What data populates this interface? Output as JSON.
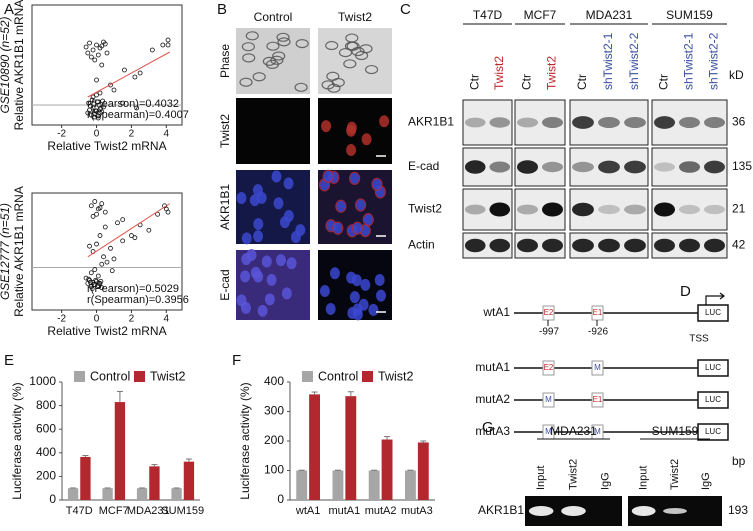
{
  "panel_labels": [
    "A",
    "B",
    "C",
    "D",
    "E",
    "F",
    "G"
  ],
  "chart_data": [
    {
      "type": "scatter",
      "dataset_label": "GSE10890 (n=52)",
      "y_label": "Relative AKR1B1 mRNA",
      "x_label": "Relative Twist2 mRNA",
      "x": [
        -0.6,
        -0.4,
        -0.2,
        0.0,
        0.2,
        0.4,
        -0.5,
        -0.3,
        0.1,
        0.3,
        0.5,
        -0.1,
        -0.5,
        -0.4,
        -0.3,
        -0.2,
        -0.1,
        0.0,
        0.1,
        0.2,
        0.3,
        0.4,
        -0.45,
        -0.35,
        -0.25,
        -0.15,
        -0.05,
        0.05,
        0.15,
        0.25,
        0.35,
        -0.2,
        0.0,
        0.2,
        0.3,
        0.6,
        0.8,
        1.0,
        1.5,
        1.6,
        2.2,
        2.3,
        2.5,
        3.2,
        3.8,
        4.1,
        4.1,
        -0.1,
        0.1,
        -0.3,
        0.2,
        0.0
      ],
      "y": [
        5.8,
        6.2,
        5.5,
        6.0,
        5.7,
        6.3,
        5.2,
        4.8,
        5.0,
        5.9,
        6.1,
        4.5,
        -0.8,
        -0.5,
        -1.0,
        -0.3,
        -0.9,
        -0.6,
        -1.1,
        -0.4,
        -0.7,
        -0.2,
        0.2,
        -0.1,
        0.5,
        0.1,
        -0.6,
        0.3,
        0.0,
        -0.3,
        0.4,
        0.8,
        1.0,
        1.2,
        4.0,
        5.2,
        2.0,
        1.5,
        0.2,
        3.5,
        2.8,
        -0.3,
        3.2,
        5.5,
        6.0,
        6.5,
        6.0,
        -1.2,
        -1.3,
        -1.0,
        -0.8,
        2.5
      ],
      "xlim": [
        -3.7,
        4.9
      ],
      "ylim": [
        -2,
        10
      ],
      "xticks": [
        -2,
        0,
        2,
        4
      ],
      "reference_line": 0,
      "fit": {
        "x": [
          -0.5,
          4.2
        ],
        "y": [
          0.8,
          5.3
        ]
      },
      "annotations": [
        "r(Pearson)=0.4032",
        "r(Spearman)=0.4007"
      ],
      "color": "#111111",
      "fit_color": "#e0564f"
    },
    {
      "type": "scatter",
      "dataset_label": "GSE12777 (n=51)",
      "y_label": "Relative AKR1B1 mRNA",
      "x_label": "Relative Twist2 mRNA",
      "x": [
        -0.3,
        -0.1,
        0.1,
        0.3,
        0.5,
        -0.2,
        0.0,
        0.2,
        -0.5,
        -0.4,
        -0.3,
        -0.2,
        -0.1,
        0.0,
        0.1,
        0.2,
        0.3,
        -0.45,
        -0.35,
        -0.25,
        -0.15,
        -0.05,
        0.05,
        0.15,
        0.25,
        -0.3,
        -0.1,
        0.1,
        0.3,
        -0.2,
        0.0,
        0.2,
        0.4,
        0.6,
        0.5,
        0.8,
        1.0,
        1.2,
        1.5,
        2.0,
        2.2,
        2.5,
        3.0,
        3.5,
        3.9,
        4.0,
        4.1,
        -0.6,
        1.5,
        0.9,
        -0.4
      ],
      "y": [
        5.8,
        6.2,
        5.5,
        6.0,
        5.2,
        4.8,
        5.0,
        5.6,
        -1.5,
        -1.2,
        -1.8,
        -1.4,
        -1.6,
        -1.3,
        -1.7,
        -1.5,
        -1.9,
        -1.1,
        -1.4,
        -2.0,
        -1.6,
        -1.2,
        -1.8,
        -1.5,
        -1.3,
        -0.5,
        -0.2,
        -0.8,
        0.3,
        1.5,
        2.2,
        3.0,
        1.0,
        0.5,
        3.8,
        1.8,
        0.8,
        4.2,
        4.5,
        3.0,
        2.8,
        4.0,
        3.5,
        5.0,
        5.8,
        5.5,
        5.2,
        -1.0,
        2.5,
        -0.3,
        2.0
      ],
      "xlim": [
        -3.7,
        4.9
      ],
      "ylim": [
        -4,
        7
      ],
      "xticks": [
        -2,
        0,
        2,
        4
      ],
      "reference_line": 0,
      "fit": {
        "x": [
          -0.5,
          4.2
        ],
        "y": [
          1.0,
          6.0
        ]
      },
      "annotations": [
        "r(Pearson)=0.5029",
        "r(Spearman)=0.3956"
      ],
      "color": "#111111",
      "fit_color": "#e0564f"
    },
    {
      "type": "bar",
      "y_label": "Luciferase activity (%)",
      "categories": [
        "T47D",
        "MCF7",
        "MDA231",
        "SUM159"
      ],
      "series": [
        {
          "name": "Control",
          "color": "#a6a6a6",
          "values": [
            100,
            100,
            100,
            100
          ],
          "errors": [
            2,
            2,
            2,
            2
          ]
        },
        {
          "name": "Twist2",
          "color": "#b2282e",
          "values": [
            365,
            830,
            285,
            325
          ],
          "errors": [
            12,
            90,
            15,
            22
          ]
        }
      ],
      "ylim": [
        0,
        1000
      ],
      "yticks": [
        0,
        200,
        400,
        600,
        800,
        1000
      ]
    },
    {
      "type": "bar",
      "y_label": "Luciferase activity (%)",
      "categories": [
        "wtA1",
        "mutA1",
        "mutA2",
        "mutA3"
      ],
      "series": [
        {
          "name": "Control",
          "color": "#a6a6a6",
          "values": [
            100,
            100,
            100,
            100
          ],
          "errors": [
            1,
            1,
            1,
            1
          ]
        },
        {
          "name": "Twist2",
          "color": "#b2282e",
          "values": [
            358,
            352,
            205,
            195
          ],
          "errors": [
            8,
            15,
            10,
            5
          ]
        }
      ],
      "ylim": [
        0,
        400
      ],
      "yticks": [
        0,
        100,
        200,
        300,
        400
      ]
    }
  ],
  "panel_b": {
    "columns": [
      "Control",
      "Twist2"
    ],
    "rows": [
      "Phase",
      "Twist2",
      "AKR1B1",
      "E-cad"
    ]
  },
  "panel_c": {
    "groups": [
      {
        "name": "T47D",
        "lanes": [
          {
            "name": "Ctr",
            "color": "#111111"
          },
          {
            "name": "Twist2",
            "color": "#c0272d"
          }
        ]
      },
      {
        "name": "MCF7",
        "lanes": [
          {
            "name": "Ctr",
            "color": "#111111"
          },
          {
            "name": "Twist2",
            "color": "#c0272d"
          }
        ]
      },
      {
        "name": "MDA231",
        "lanes": [
          {
            "name": "Ctr",
            "color": "#111111"
          },
          {
            "name": "shTwist2-1",
            "color": "#3a4fa0"
          },
          {
            "name": "shTwist2-2",
            "color": "#3a4fa0"
          }
        ]
      },
      {
        "name": "SUM159",
        "lanes": [
          {
            "name": "Ctr",
            "color": "#111111"
          },
          {
            "name": "shTwist2-1",
            "color": "#3a4fa0"
          },
          {
            "name": "shTwist2-2",
            "color": "#3a4fa0"
          }
        ]
      }
    ],
    "rows": [
      {
        "name": "AKR1B1",
        "size": 36
      },
      {
        "name": "E-cad",
        "size": 135
      },
      {
        "name": "Twist2",
        "size": 21
      },
      {
        "name": "Actin",
        "size": 42
      }
    ],
    "unit": "kD"
  },
  "panel_d": {
    "constructs": [
      {
        "name": "wtA1",
        "boxes": [
          "E2",
          "E1"
        ]
      },
      {
        "name": "mutA1",
        "boxes": [
          "E2",
          "M"
        ]
      },
      {
        "name": "mutA2",
        "boxes": [
          "M",
          "E1"
        ]
      },
      {
        "name": "mutA3",
        "boxes": [
          "M",
          "M"
        ]
      }
    ],
    "reporter": "LUC",
    "positions": [
      -997,
      -926
    ],
    "tss": "TSS"
  },
  "panel_g": {
    "groups": [
      {
        "name": "MDA231",
        "lanes": [
          "Input",
          "Twist2",
          "IgG"
        ]
      },
      {
        "name": "SUM159",
        "lanes": [
          "Input",
          "Twist2",
          "IgG"
        ]
      }
    ],
    "row": "AKR1B1",
    "size": 193,
    "unit": "bp"
  }
}
